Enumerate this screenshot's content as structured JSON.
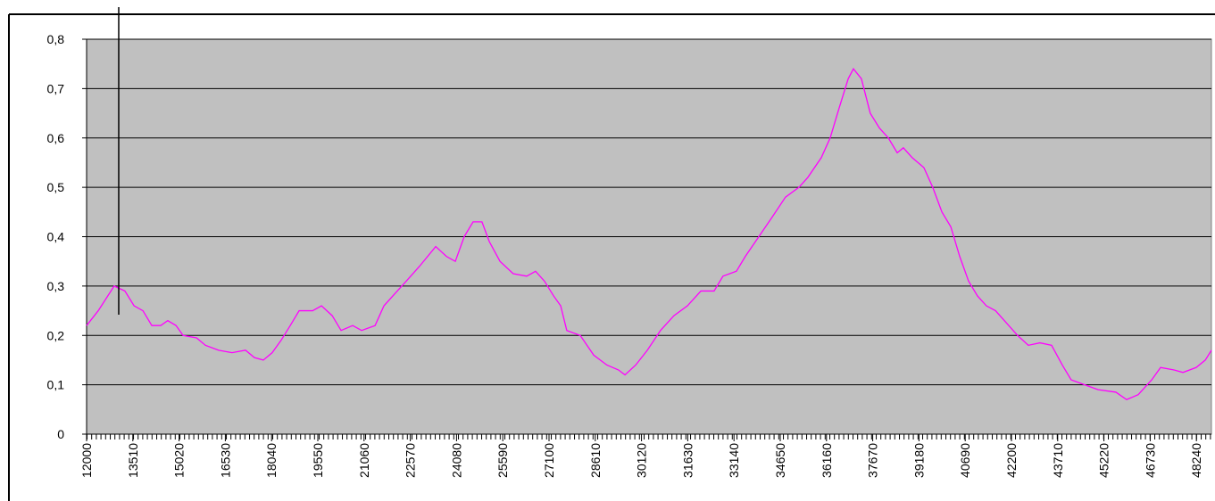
{
  "chart_data": {
    "type": "line",
    "x": [
      12000,
      12380,
      12900,
      13250,
      13550,
      13840,
      14130,
      14420,
      14650,
      14920,
      15150,
      15590,
      15880,
      16310,
      16750,
      17190,
      17480,
      17770,
      18060,
      18350,
      18650,
      18940,
      19380,
      19670,
      20020,
      20310,
      20690,
      20980,
      21420,
      21710,
      22000,
      22440,
      22870,
      23400,
      23750,
      24040,
      24330,
      24620,
      24910,
      25150,
      25500,
      25930,
      26370,
      26660,
      26950,
      27250,
      27480,
      27680,
      28120,
      28560,
      28990,
      29370,
      29580,
      29930,
      30310,
      30740,
      31180,
      31620,
      32060,
      32490,
      32780,
      33220,
      33510,
      33950,
      34390,
      34820,
      35260,
      35550,
      35990,
      36280,
      36570,
      36870,
      37040,
      37300,
      37590,
      37890,
      38180,
      38470,
      38670,
      38960,
      39340,
      39630,
      39930,
      40220,
      40510,
      40800,
      41090,
      41380,
      41680,
      41970,
      42400,
      42750,
      43130,
      43510,
      43860,
      44150,
      44590,
      45030,
      45610,
      45960,
      46340,
      46780,
      47070,
      47510,
      47800,
      48230,
      48530,
      48730
    ],
    "series": [
      {
        "color": "#ff00ff",
        "values": [
          0.22,
          0.25,
          0.3,
          0.29,
          0.26,
          0.25,
          0.22,
          0.22,
          0.23,
          0.22,
          0.2,
          0.195,
          0.18,
          0.17,
          0.165,
          0.17,
          0.155,
          0.15,
          0.165,
          0.19,
          0.22,
          0.25,
          0.25,
          0.26,
          0.24,
          0.21,
          0.22,
          0.21,
          0.22,
          0.26,
          0.28,
          0.31,
          0.34,
          0.38,
          0.36,
          0.35,
          0.4,
          0.43,
          0.43,
          0.39,
          0.35,
          0.325,
          0.32,
          0.33,
          0.31,
          0.28,
          0.26,
          0.21,
          0.2,
          0.16,
          0.14,
          0.13,
          0.12,
          0.14,
          0.17,
          0.21,
          0.24,
          0.26,
          0.29,
          0.29,
          0.32,
          0.33,
          0.36,
          0.4,
          0.44,
          0.48,
          0.5,
          0.52,
          0.56,
          0.6,
          0.66,
          0.72,
          0.74,
          0.72,
          0.65,
          0.62,
          0.6,
          0.57,
          0.58,
          0.56,
          0.54,
          0.5,
          0.45,
          0.42,
          0.36,
          0.31,
          0.28,
          0.26,
          0.25,
          0.23,
          0.2,
          0.18,
          0.185,
          0.18,
          0.14,
          0.11,
          0.1,
          0.09,
          0.085,
          0.07,
          0.08,
          0.11,
          0.135,
          0.13,
          0.125,
          0.135,
          0.15,
          0.17
        ]
      }
    ],
    "xlim": [
      12000,
      48730
    ],
    "xticks": [
      12000,
      13510,
      15020,
      16530,
      18040,
      19550,
      21060,
      22570,
      24080,
      25590,
      27100,
      28610,
      30120,
      31630,
      33140,
      34650,
      36160,
      37670,
      39180,
      40690,
      42200,
      43710,
      45220,
      46730,
      48240
    ],
    "ylim": [
      0,
      0.8
    ],
    "yticks": [
      0,
      {
        "value": 0.1,
        "label": "0,1"
      },
      {
        "value": 0.2,
        "label": "0,2"
      },
      {
        "value": 0.3,
        "label": "0,3"
      },
      {
        "value": 0.4,
        "label": "0,4"
      },
      {
        "value": 0.5,
        "label": "0,5"
      },
      {
        "value": 0.6,
        "label": "0,6"
      },
      {
        "value": 0.7,
        "label": "0,7"
      },
      {
        "value": 0.8,
        "label": "0,8"
      }
    ],
    "grid": true
  }
}
